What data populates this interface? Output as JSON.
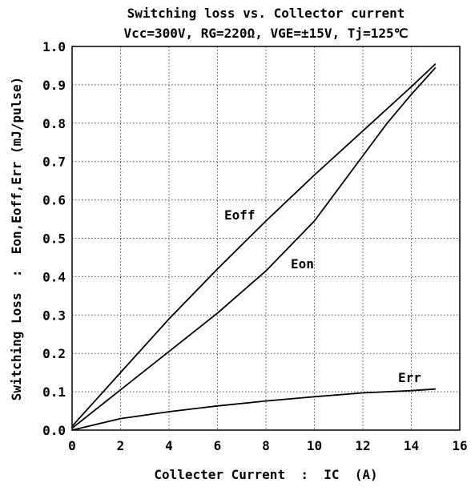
{
  "chart_data": {
    "type": "line",
    "title": "Switching loss vs. Collector current",
    "subtitle": "Vcc=300V, RG=220Ω, VGE=±15V, Tj=125℃",
    "xlabel": "Collecter Current  :  IC  (A)",
    "ylabel": "Switching Loss  :  Eon,Eoff,Err (mJ/pulse)",
    "xlim": [
      0,
      16
    ],
    "ylim": [
      0,
      1.0
    ],
    "x_ticks": [
      "0",
      "2",
      "4",
      "6",
      "8",
      "10",
      "12",
      "14",
      "16"
    ],
    "y_ticks": [
      "0.0",
      "0.1",
      "0.2",
      "0.3",
      "0.4",
      "0.5",
      "0.6",
      "0.7",
      "0.8",
      "0.9",
      "1.0"
    ],
    "grid": "dotted",
    "series": [
      {
        "name": "Eoff",
        "x": [
          0,
          2,
          4,
          6,
          8,
          10,
          12,
          14,
          15
        ],
        "y": [
          0.01,
          0.15,
          0.29,
          0.42,
          0.545,
          0.665,
          0.78,
          0.895,
          0.955
        ]
      },
      {
        "name": "Eon",
        "x": [
          0,
          2,
          4,
          6,
          8,
          10,
          11,
          12,
          13,
          14,
          15
        ],
        "y": [
          0.005,
          0.105,
          0.205,
          0.305,
          0.415,
          0.545,
          0.63,
          0.715,
          0.8,
          0.875,
          0.945
        ]
      },
      {
        "name": "Err",
        "x": [
          0,
          2,
          4,
          6,
          8,
          10,
          12,
          14,
          15
        ],
        "y": [
          0.0,
          0.03,
          0.048,
          0.063,
          0.076,
          0.087,
          0.097,
          0.103,
          0.107
        ]
      }
    ]
  }
}
